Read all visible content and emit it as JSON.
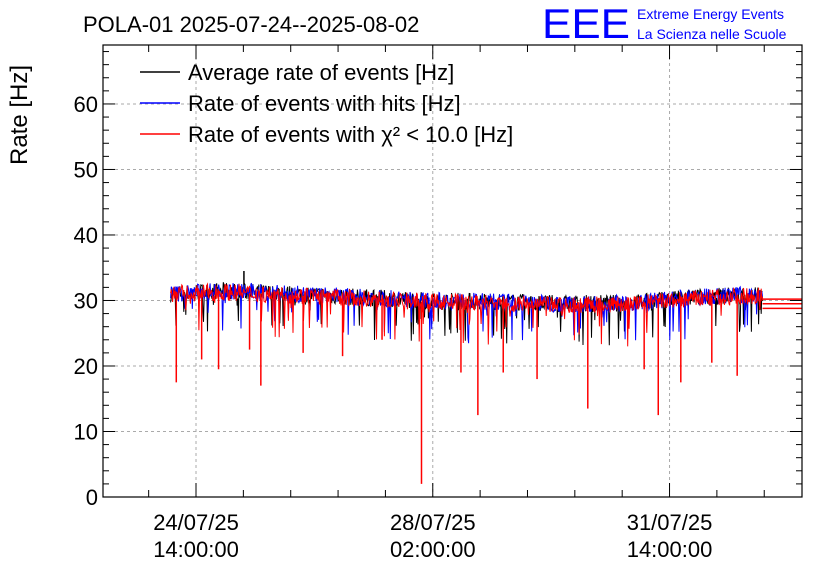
{
  "chart_data": {
    "type": "line",
    "title": "POLA-01 2025-07-24--2025-08-02",
    "ylabel": "Rate [Hz]",
    "xlabel": "",
    "ylim": [
      0,
      69
    ],
    "yticks": [
      0,
      10,
      20,
      30,
      40,
      50,
      60
    ],
    "xlim": [
      "2025-07-23T05:00:00",
      "2025-08-02T13:00:00"
    ],
    "xticks": [
      {
        "t": "2025-07-24T14:00:00",
        "date": "24/07/25",
        "time": "14:00:00"
      },
      {
        "t": "2025-07-28T02:00:00",
        "date": "28/07/25",
        "time": "02:00:00"
      },
      {
        "t": "2025-07-31T14:00:00",
        "date": "31/07/25",
        "time": "14:00:00"
      }
    ],
    "grid": true,
    "legend_position": "top-left",
    "series": [
      {
        "name": "Average rate of events [Hz]",
        "color": "#000000",
        "band": [
          {
            "t": "2025-07-24T05:00:00",
            "y": 31.0
          },
          {
            "t": "2025-07-25T00:00:00",
            "y": 31.5
          },
          {
            "t": "2025-07-26T00:00:00",
            "y": 31.0
          },
          {
            "t": "2025-07-27T00:00:00",
            "y": 30.5
          },
          {
            "t": "2025-07-28T00:00:00",
            "y": 30.0
          },
          {
            "t": "2025-07-29T00:00:00",
            "y": 29.8
          },
          {
            "t": "2025-07-30T00:00:00",
            "y": 29.5
          },
          {
            "t": "2025-07-31T00:00:00",
            "y": 29.6
          },
          {
            "t": "2025-08-01T00:00:00",
            "y": 30.5
          },
          {
            "t": "2025-08-01T23:00:00",
            "y": 31.0
          }
        ],
        "peaks": [
          {
            "t": "2025-07-25T07:00:00",
            "y": 34.5
          }
        ]
      },
      {
        "name": "Rate of events with hits [Hz]",
        "color": "#0000ff",
        "band": [
          {
            "t": "2025-07-24T05:00:00",
            "y": 31.0
          },
          {
            "t": "2025-07-25T00:00:00",
            "y": 31.5
          },
          {
            "t": "2025-07-26T00:00:00",
            "y": 31.0
          },
          {
            "t": "2025-07-27T00:00:00",
            "y": 30.5
          },
          {
            "t": "2025-07-28T00:00:00",
            "y": 30.0
          },
          {
            "t": "2025-07-29T00:00:00",
            "y": 29.8
          },
          {
            "t": "2025-07-30T00:00:00",
            "y": 29.5
          },
          {
            "t": "2025-07-31T00:00:00",
            "y": 29.6
          },
          {
            "t": "2025-08-01T00:00:00",
            "y": 30.5
          },
          {
            "t": "2025-08-01T23:00:00",
            "y": 31.0
          }
        ]
      },
      {
        "name": "Rate of events with χ² < 10.0 [Hz]",
        "color": "#ff0000",
        "band": [
          {
            "t": "2025-07-24T05:00:00",
            "y": 31.0
          },
          {
            "t": "2025-07-25T00:00:00",
            "y": 31.3
          },
          {
            "t": "2025-07-26T00:00:00",
            "y": 30.8
          },
          {
            "t": "2025-07-27T00:00:00",
            "y": 30.3
          },
          {
            "t": "2025-07-28T00:00:00",
            "y": 29.8
          },
          {
            "t": "2025-07-29T00:00:00",
            "y": 29.6
          },
          {
            "t": "2025-07-30T00:00:00",
            "y": 29.3
          },
          {
            "t": "2025-07-31T00:00:00",
            "y": 29.4
          },
          {
            "t": "2025-08-01T00:00:00",
            "y": 30.3
          },
          {
            "t": "2025-08-01T23:00:00",
            "y": 30.8
          }
        ],
        "dips": [
          {
            "t": "2025-07-24T07:00:00",
            "y": 17.5
          },
          {
            "t": "2025-07-24T16:00:00",
            "y": 21.0
          },
          {
            "t": "2025-07-24T22:00:00",
            "y": 19.5
          },
          {
            "t": "2025-07-25T09:00:00",
            "y": 22.5
          },
          {
            "t": "2025-07-25T13:00:00",
            "y": 17.0
          },
          {
            "t": "2025-07-26T04:00:00",
            "y": 22.0
          },
          {
            "t": "2025-07-26T18:00:00",
            "y": 21.5
          },
          {
            "t": "2025-07-27T08:00:00",
            "y": 24.0
          },
          {
            "t": "2025-07-27T22:00:00",
            "y": 2.0
          },
          {
            "t": "2025-07-28T12:00:00",
            "y": 19.0
          },
          {
            "t": "2025-07-28T18:00:00",
            "y": 12.5
          },
          {
            "t": "2025-07-29T03:00:00",
            "y": 19.0
          },
          {
            "t": "2025-07-29T15:00:00",
            "y": 18.0
          },
          {
            "t": "2025-07-30T09:00:00",
            "y": 13.5
          },
          {
            "t": "2025-07-31T05:00:00",
            "y": 19.5
          },
          {
            "t": "2025-07-31T10:00:00",
            "y": 12.5
          },
          {
            "t": "2025-07-31T18:00:00",
            "y": 17.5
          },
          {
            "t": "2025-08-01T05:00:00",
            "y": 20.5
          },
          {
            "t": "2025-08-01T14:00:00",
            "y": 18.5
          }
        ],
        "tail": {
          "t_start": "2025-08-01T23:00:00",
          "t_end": "2025-08-02T13:00:00",
          "values": [
            30.2,
            29.5,
            28.8
          ]
        }
      }
    ]
  },
  "logo": {
    "mark": "EEE",
    "line1": "Extreme Energy Events",
    "line2": "La Scienza nelle Scuole",
    "color": "#0000ff"
  }
}
